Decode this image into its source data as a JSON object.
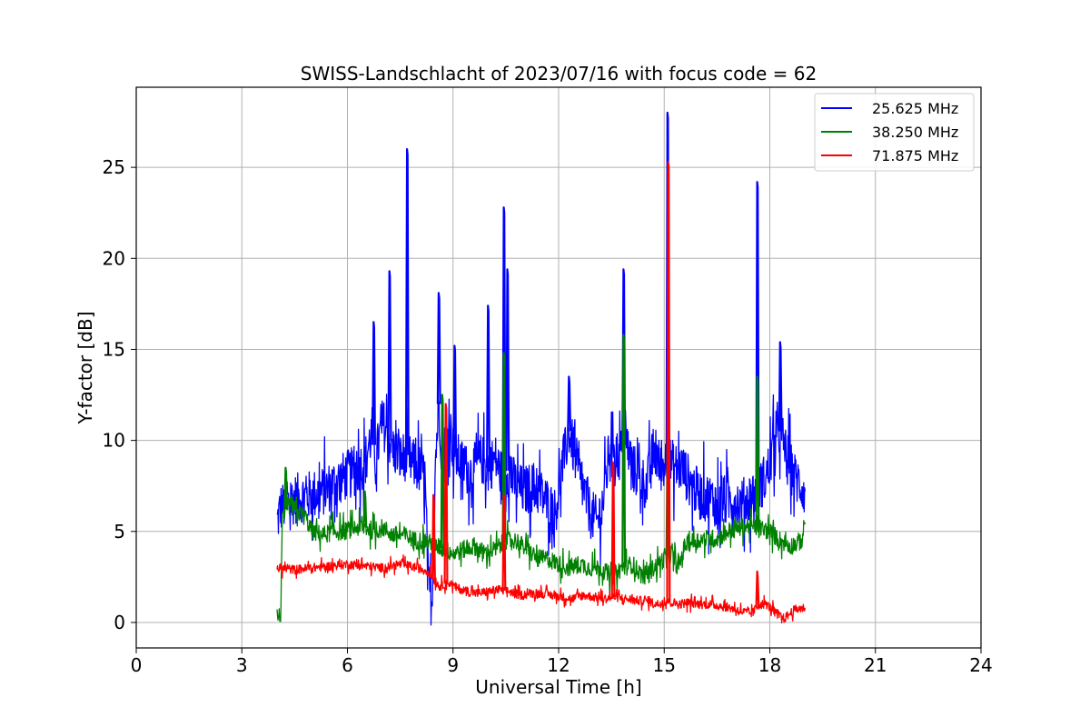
{
  "chart_data": {
    "type": "line",
    "title": "SWISS-Landschlacht of 2023/07/16 with focus code = 62",
    "xlabel": "Universal Time [h]",
    "ylabel": "Y-factor [dB]",
    "xlim": [
      0,
      24
    ],
    "ylim": [
      -1.4,
      29.4
    ],
    "xticks": [
      0,
      3,
      6,
      9,
      12,
      15,
      18,
      21,
      24
    ],
    "yticks": [
      0,
      5,
      10,
      15,
      20,
      25
    ],
    "grid": true,
    "legend_position": "top-right",
    "series": [
      {
        "name": "25.625 MHz",
        "color": "#0000ff",
        "points": [
          [
            4.0,
            5.5
          ],
          [
            4.1,
            6.3
          ],
          [
            4.3,
            6.5
          ],
          [
            4.5,
            6.8
          ],
          [
            4.8,
            6.9
          ],
          [
            5.0,
            7.0
          ],
          [
            5.3,
            7.2
          ],
          [
            5.6,
            7.6
          ],
          [
            5.9,
            8.0
          ],
          [
            6.2,
            8.3
          ],
          [
            6.5,
            8.8
          ],
          [
            6.7,
            10.5
          ],
          [
            6.8,
            9.0
          ],
          [
            7.0,
            11.0
          ],
          [
            7.2,
            10.0
          ],
          [
            7.3,
            9.5
          ],
          [
            7.5,
            9.0
          ],
          [
            7.7,
            9.2
          ],
          [
            7.8,
            8.8
          ],
          [
            8.0,
            8.5
          ],
          [
            8.2,
            8.0
          ],
          [
            8.3,
            2.0
          ],
          [
            8.4,
            1.0
          ],
          [
            8.5,
            9.0
          ],
          [
            8.6,
            12.0
          ],
          [
            8.7,
            8.5
          ],
          [
            8.9,
            11.0
          ],
          [
            9.0,
            9.5
          ],
          [
            9.2,
            8.8
          ],
          [
            9.5,
            8.2
          ],
          [
            9.8,
            9.0
          ],
          [
            10.0,
            8.5
          ],
          [
            10.2,
            9.0
          ],
          [
            10.4,
            8.0
          ],
          [
            10.5,
            8.5
          ],
          [
            10.8,
            7.5
          ],
          [
            11.0,
            7.2
          ],
          [
            11.3,
            7.5
          ],
          [
            11.6,
            6.8
          ],
          [
            11.9,
            6.0
          ],
          [
            12.1,
            8.5
          ],
          [
            12.3,
            10.5
          ],
          [
            12.6,
            8.0
          ],
          [
            12.9,
            6.0
          ],
          [
            13.1,
            5.5
          ],
          [
            13.3,
            7.0
          ],
          [
            13.5,
            10.5
          ],
          [
            13.7,
            9.0
          ],
          [
            13.9,
            10.0
          ],
          [
            14.1,
            8.5
          ],
          [
            14.3,
            8.0
          ],
          [
            14.5,
            7.5
          ],
          [
            14.7,
            9.5
          ],
          [
            14.9,
            8.5
          ],
          [
            15.1,
            9.0
          ],
          [
            15.3,
            8.5
          ],
          [
            15.5,
            8.5
          ],
          [
            15.8,
            7.5
          ],
          [
            16.0,
            7.0
          ],
          [
            16.3,
            6.8
          ],
          [
            16.6,
            6.5
          ],
          [
            16.9,
            6.8
          ],
          [
            17.2,
            6.5
          ],
          [
            17.5,
            7.0
          ],
          [
            17.7,
            7.5
          ],
          [
            17.9,
            8.0
          ],
          [
            18.1,
            9.5
          ],
          [
            18.3,
            10.5
          ],
          [
            18.5,
            9.0
          ],
          [
            18.7,
            8.0
          ],
          [
            18.9,
            7.5
          ],
          [
            19.0,
            7.2
          ]
        ],
        "spikes": [
          [
            6.75,
            16.5
          ],
          [
            7.2,
            19.3
          ],
          [
            7.7,
            26.0
          ],
          [
            8.6,
            18.1
          ],
          [
            9.05,
            15.2
          ],
          [
            10.0,
            17.4
          ],
          [
            10.45,
            22.8
          ],
          [
            10.55,
            19.4
          ],
          [
            12.3,
            13.5
          ],
          [
            13.85,
            19.4
          ],
          [
            15.1,
            28.0
          ],
          [
            17.65,
            24.2
          ],
          [
            18.3,
            15.4
          ]
        ]
      },
      {
        "name": "38.250 MHz",
        "color": "#008000",
        "points": [
          [
            4.0,
            0.4
          ],
          [
            4.1,
            0.3
          ],
          [
            4.15,
            5.5
          ],
          [
            4.3,
            6.5
          ],
          [
            4.5,
            6.2
          ],
          [
            4.8,
            5.8
          ],
          [
            5.0,
            5.0
          ],
          [
            5.3,
            4.8
          ],
          [
            5.6,
            5.0
          ],
          [
            5.9,
            5.0
          ],
          [
            6.2,
            5.2
          ],
          [
            6.5,
            5.2
          ],
          [
            6.8,
            5.0
          ],
          [
            7.0,
            5.2
          ],
          [
            7.3,
            4.8
          ],
          [
            7.6,
            4.8
          ],
          [
            7.9,
            4.5
          ],
          [
            8.2,
            4.5
          ],
          [
            8.5,
            4.2
          ],
          [
            8.8,
            4.0
          ],
          [
            9.0,
            3.8
          ],
          [
            9.3,
            4.0
          ],
          [
            9.6,
            4.2
          ],
          [
            9.9,
            3.8
          ],
          [
            10.2,
            4.0
          ],
          [
            10.5,
            4.5
          ],
          [
            10.8,
            4.5
          ],
          [
            11.1,
            4.0
          ],
          [
            11.4,
            3.5
          ],
          [
            11.7,
            3.5
          ],
          [
            12.0,
            3.2
          ],
          [
            12.3,
            3.0
          ],
          [
            12.6,
            3.2
          ],
          [
            12.9,
            3.0
          ],
          [
            13.2,
            3.0
          ],
          [
            13.5,
            2.5
          ],
          [
            13.8,
            3.0
          ],
          [
            14.1,
            3.2
          ],
          [
            14.4,
            2.5
          ],
          [
            14.7,
            3.0
          ],
          [
            15.0,
            3.5
          ],
          [
            15.2,
            3.8
          ],
          [
            15.4,
            3.0
          ],
          [
            15.6,
            4.3
          ],
          [
            15.9,
            4.5
          ],
          [
            16.2,
            4.6
          ],
          [
            16.5,
            4.6
          ],
          [
            16.8,
            5.0
          ],
          [
            17.1,
            5.2
          ],
          [
            17.4,
            5.3
          ],
          [
            17.7,
            5.2
          ],
          [
            18.0,
            5.0
          ],
          [
            18.3,
            4.5
          ],
          [
            18.6,
            4.2
          ],
          [
            18.9,
            4.5
          ],
          [
            19.0,
            5.5
          ]
        ],
        "spikes": [
          [
            4.25,
            8.5
          ],
          [
            6.5,
            7.2
          ],
          [
            8.7,
            12.5
          ],
          [
            10.45,
            14.8
          ],
          [
            13.85,
            15.8
          ],
          [
            15.1,
            10.0
          ],
          [
            17.65,
            13.5
          ]
        ]
      },
      {
        "name": "71.875 MHz",
        "color": "#ff0000",
        "points": [
          [
            4.0,
            3.0
          ],
          [
            4.5,
            2.9
          ],
          [
            5.0,
            3.0
          ],
          [
            5.5,
            3.1
          ],
          [
            6.0,
            3.2
          ],
          [
            6.5,
            3.1
          ],
          [
            7.0,
            3.0
          ],
          [
            7.5,
            3.2
          ],
          [
            8.0,
            3.0
          ],
          [
            8.3,
            2.8
          ],
          [
            8.6,
            2.0
          ],
          [
            8.9,
            2.2
          ],
          [
            9.1,
            1.9
          ],
          [
            9.4,
            1.7
          ],
          [
            9.7,
            1.6
          ],
          [
            10.0,
            1.7
          ],
          [
            10.3,
            1.8
          ],
          [
            10.6,
            1.7
          ],
          [
            10.9,
            1.5
          ],
          [
            11.2,
            1.6
          ],
          [
            11.5,
            1.6
          ],
          [
            11.8,
            1.5
          ],
          [
            12.1,
            1.4
          ],
          [
            12.4,
            1.3
          ],
          [
            12.7,
            1.5
          ],
          [
            13.0,
            1.4
          ],
          [
            13.3,
            1.3
          ],
          [
            13.6,
            1.4
          ],
          [
            13.9,
            1.3
          ],
          [
            14.2,
            1.2
          ],
          [
            14.5,
            1.2
          ],
          [
            14.8,
            1.0
          ],
          [
            15.1,
            1.2
          ],
          [
            15.4,
            1.0
          ],
          [
            15.7,
            1.1
          ],
          [
            16.0,
            1.0
          ],
          [
            16.3,
            1.0
          ],
          [
            16.6,
            0.9
          ],
          [
            16.9,
            0.8
          ],
          [
            17.2,
            0.6
          ],
          [
            17.5,
            0.5
          ],
          [
            17.7,
            1.0
          ],
          [
            17.9,
            1.0
          ],
          [
            18.2,
            0.5
          ],
          [
            18.4,
            0.2
          ],
          [
            18.7,
            0.7
          ],
          [
            19.0,
            0.8
          ]
        ],
        "spikes": [
          [
            8.45,
            7.0
          ],
          [
            8.8,
            12.0
          ],
          [
            10.45,
            7.0
          ],
          [
            13.55,
            8.8
          ],
          [
            15.12,
            25.3
          ],
          [
            17.65,
            2.8
          ]
        ]
      }
    ]
  }
}
